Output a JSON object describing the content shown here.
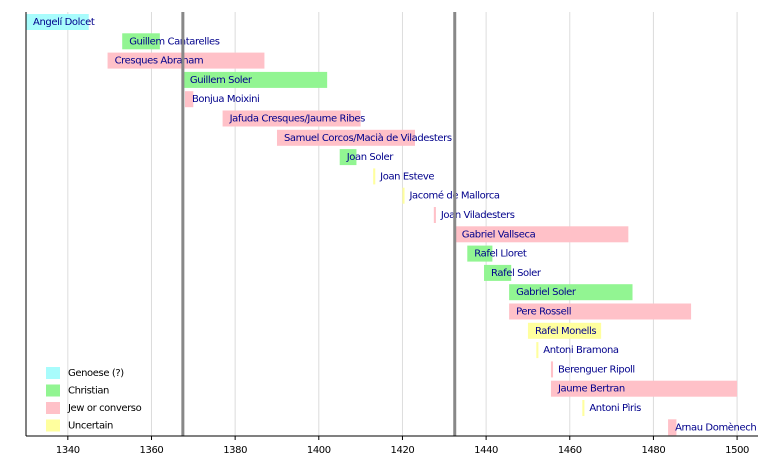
{
  "chart_data": {
    "type": "timeline",
    "xlim": [
      1330,
      1505
    ],
    "xticks": [
      1340,
      1360,
      1380,
      1400,
      1420,
      1440,
      1460,
      1480,
      1500
    ],
    "grid": true,
    "markers": [
      1367.5,
      1432.5
    ],
    "groups": [
      {
        "name": "Genoese (?)",
        "color": "#a8fcfc"
      },
      {
        "name": "Christian",
        "color": "#92f592"
      },
      {
        "name": "Jew or converso",
        "color": "#ffc1c8"
      },
      {
        "name": "Uncertain",
        "color": "#ffff9e"
      }
    ],
    "legend_position": "lower left",
    "bars": [
      {
        "label": "Angelí Dolcet",
        "start": 1330,
        "end": 1345,
        "group": 0
      },
      {
        "label": "Guillem Cantarelles",
        "start": 1353,
        "end": 1362,
        "group": 1
      },
      {
        "label": "Cresques Abraham",
        "start": 1349.5,
        "end": 1387,
        "group": 2
      },
      {
        "label": "Guillem Soler",
        "start": 1367.5,
        "end": 1402,
        "group": 1
      },
      {
        "label": "Bonjua Moixini",
        "start": 1368,
        "end": 1370,
        "group": 2
      },
      {
        "label": "Jafuda Cresques/Jaume Ribes",
        "start": 1377,
        "end": 1410,
        "group": 2
      },
      {
        "label": "Samuel Corcos/Macià de Viladesters",
        "start": 1390,
        "end": 1423,
        "group": 2
      },
      {
        "label": "Joan Soler",
        "start": 1405,
        "end": 1409,
        "group": 1
      },
      {
        "label": "Joan Esteve",
        "start": 1413,
        "end": 1413.5,
        "group": 3
      },
      {
        "label": "Jacomé de Mallorca",
        "start": 1420,
        "end": 1420.5,
        "group": 3
      },
      {
        "label": "Joan Viladesters",
        "start": 1427.5,
        "end": 1428,
        "group": 2
      },
      {
        "label": "Gabriel Vallseca",
        "start": 1432.5,
        "end": 1474,
        "group": 2
      },
      {
        "label": "Rafel Lloret",
        "start": 1435.5,
        "end": 1441.5,
        "group": 1
      },
      {
        "label": "Rafel Soler",
        "start": 1439.5,
        "end": 1446,
        "group": 1
      },
      {
        "label": "Gabriel Soler",
        "start": 1445.5,
        "end": 1475,
        "group": 1
      },
      {
        "label": "Pere Rossell",
        "start": 1445.5,
        "end": 1489,
        "group": 2
      },
      {
        "label": "Rafel Monells",
        "start": 1450,
        "end": 1467.5,
        "group": 3
      },
      {
        "label": "Antoni  Bramona",
        "start": 1452,
        "end": 1452.5,
        "group": 3
      },
      {
        "label": "Berenguer Ripoll",
        "start": 1455.5,
        "end": 1456,
        "group": 2
      },
      {
        "label": "Jaume Bertran",
        "start": 1455.5,
        "end": 1500,
        "group": 2
      },
      {
        "label": "Antoni Pìris",
        "start": 1463,
        "end": 1463.5,
        "group": 3
      },
      {
        "label": "Arnau Domènech",
        "start": 1483.5,
        "end": 1485.5,
        "group": 2
      }
    ]
  }
}
